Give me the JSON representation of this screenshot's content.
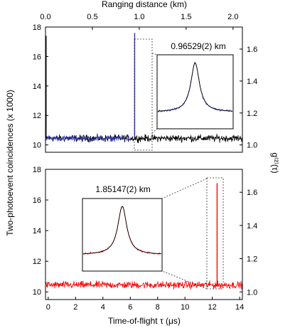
{
  "chart_data": [
    {
      "panel": "top",
      "type": "line",
      "xlabel": "",
      "top_xlabel": "Ranging distance (km)",
      "top_xticks": [
        "0.0",
        "0.5",
        "1.0",
        "1.5",
        "2.0"
      ],
      "top_xlim": [
        0,
        2.1
      ],
      "xlim": [
        0,
        14.2
      ],
      "yticks": [
        "10",
        "12",
        "14",
        "16",
        "18"
      ],
      "ylim": [
        9.5,
        18
      ],
      "right_yticks": [
        "1.0",
        "1.2",
        "1.4",
        "1.6"
      ],
      "right_ylim": [
        0.954,
        1.738
      ],
      "baseline_y": 10.45,
      "noise_amplitude": 0.18,
      "series": [
        {
          "name": "",
          "color": "#000000",
          "x_range": [
            0,
            14.2
          ],
          "peak": null
        },
        {
          "name": "",
          "color": "#3333bb",
          "x_range": [
            0,
            6.2
          ],
          "peak": {
            "x": 6.43,
            "y": 17.6
          }
        }
      ],
      "inset": {
        "annotation": "0.96529(2) km",
        "colors": {
          "data": "#2a2acc",
          "fit": "#000000"
        }
      }
    },
    {
      "panel": "bottom",
      "type": "line",
      "xlabel": "Time-of-flight τ (μs)",
      "xticks": [
        "0",
        "2",
        "4",
        "6",
        "8",
        "10",
        "12",
        "14"
      ],
      "xlim": [
        -0.2,
        14.2
      ],
      "yticks": [
        "10",
        "12",
        "14",
        "16",
        "18"
      ],
      "ylim": [
        9.5,
        18
      ],
      "right_yticks": [
        "1.0",
        "1.2",
        "1.4",
        "1.6"
      ],
      "right_ylim": [
        0.954,
        1.738
      ],
      "baseline_y": 10.45,
      "noise_amplitude": 0.18,
      "series": [
        {
          "name": "",
          "color": "#ff0000",
          "x_range": [
            -0.2,
            14.2
          ],
          "peak": {
            "x": 12.35,
            "y": 17.1
          }
        }
      ],
      "inset": {
        "annotation": "1.85147(2) km",
        "colors": {
          "data": "#ff0000",
          "fit": "#000000"
        }
      }
    }
  ],
  "shared": {
    "ylabel_left": "Two-photoevent coincidences (x 1000)",
    "ylabel_right": "g⁽²⁾(τ)"
  }
}
